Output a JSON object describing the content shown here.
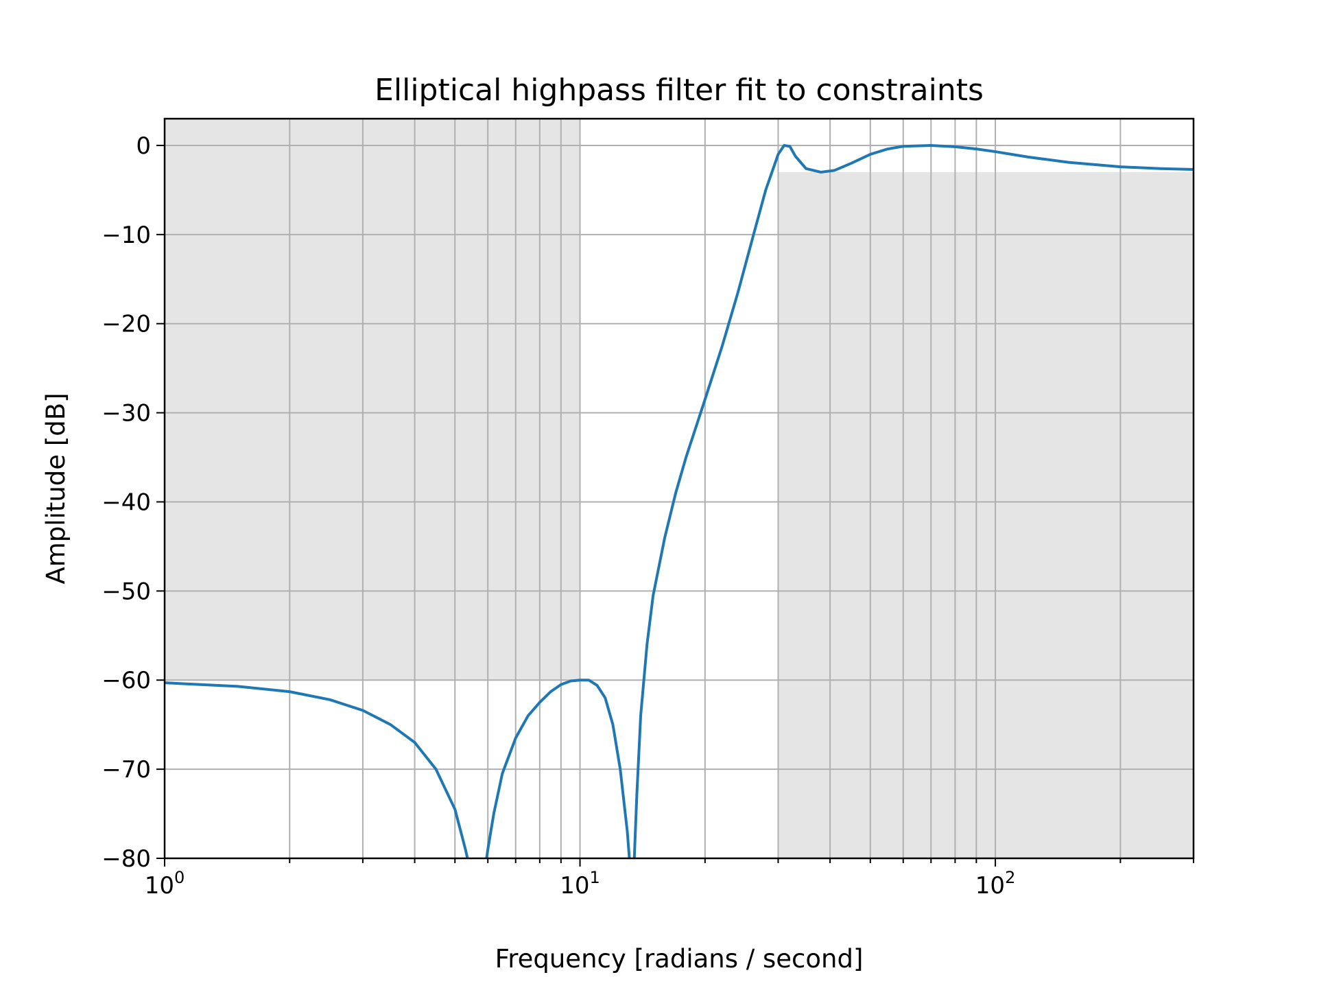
{
  "chart_data": {
    "type": "line",
    "title": "Elliptical highpass filter fit to constraints",
    "xlabel": "Frequency [radians / second]",
    "ylabel": "Amplitude [dB]",
    "xscale": "log",
    "xlim": [
      1,
      300
    ],
    "ylim": [
      -80,
      3
    ],
    "grid": "both",
    "x_ticks": [
      {
        "base": "10",
        "exp": "0",
        "value": 1
      },
      {
        "base": "10",
        "exp": "1",
        "value": 10
      },
      {
        "base": "10",
        "exp": "2",
        "value": 100
      }
    ],
    "y_ticks": [
      {
        "label": "0",
        "value": 0
      },
      {
        "label": "−10",
        "value": -10
      },
      {
        "label": "−20",
        "value": -20
      },
      {
        "label": "−30",
        "value": -30
      },
      {
        "label": "−40",
        "value": -40
      },
      {
        "label": "−50",
        "value": -50
      },
      {
        "label": "−60",
        "value": -60
      },
      {
        "label": "−70",
        "value": -70
      },
      {
        "label": "−80",
        "value": -80
      }
    ],
    "constraint_regions": [
      {
        "name": "stopband",
        "x_range": [
          1,
          10
        ],
        "y_range": [
          -60,
          3
        ],
        "color": "#e5e5e5"
      },
      {
        "name": "passband",
        "x_range": [
          30,
          300
        ],
        "y_range": [
          -80,
          -3
        ],
        "color": "#e5e5e5"
      }
    ],
    "series": [
      {
        "color": "#1f77b4",
        "x": [
          1,
          1.5,
          2,
          2.5,
          3,
          3.5,
          4,
          4.5,
          5,
          5.3,
          5.45,
          5.6,
          5.8,
          6.0,
          6.2,
          6.5,
          7,
          7.5,
          8,
          8.5,
          9,
          9.5,
          10,
          10.5,
          11,
          11.5,
          12,
          12.5,
          13,
          13.2,
          13.35,
          13.5,
          13.7,
          14,
          14.5,
          15,
          16,
          17,
          18,
          20,
          22,
          24,
          26,
          28,
          30,
          31,
          32,
          33,
          35,
          38,
          41,
          45,
          50,
          55,
          60,
          70,
          80,
          90,
          100,
          120,
          150,
          200,
          250,
          300
        ],
        "y": [
          -60.3,
          -60.7,
          -61.3,
          -62.2,
          -63.4,
          -65.0,
          -67.0,
          -70.0,
          -74.5,
          -79.0,
          -81.5,
          -85.0,
          -84.0,
          -79.0,
          -75.0,
          -70.5,
          -66.5,
          -64.0,
          -62.5,
          -61.3,
          -60.5,
          -60.1,
          -60.0,
          -60.0,
          -60.6,
          -62.0,
          -65.0,
          -70.0,
          -77.0,
          -81.0,
          -84.0,
          -80.5,
          -73.0,
          -64.0,
          -56.0,
          -50.5,
          -44.0,
          -39.0,
          -35.0,
          -28.5,
          -22.5,
          -16.5,
          -10.5,
          -5.0,
          -1.0,
          0.0,
          -0.1,
          -1.2,
          -2.6,
          -3.0,
          -2.8,
          -2.0,
          -1.0,
          -0.4,
          -0.1,
          0.0,
          -0.15,
          -0.4,
          -0.7,
          -1.3,
          -1.9,
          -2.4,
          -2.6,
          -2.7
        ]
      }
    ]
  }
}
